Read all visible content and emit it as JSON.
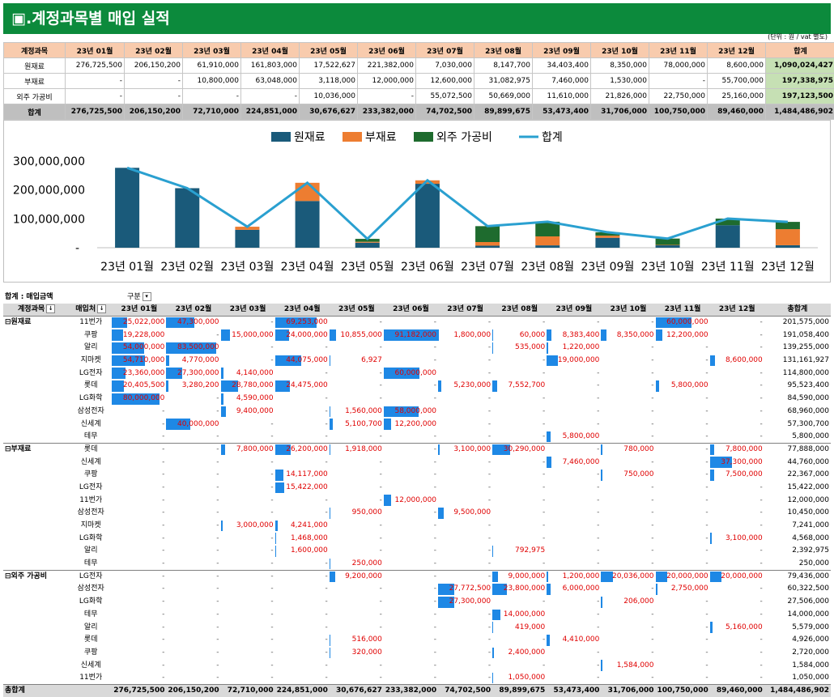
{
  "title": "▣.계정과목별 매입 실적",
  "unit_note": "(단위 : 원 / vat 별도)",
  "summary": {
    "header": [
      "계정과목",
      "23년 01월",
      "23년 02월",
      "23년 03월",
      "23년 04월",
      "23년 05월",
      "23년 06월",
      "23년 07월",
      "23년 08월",
      "23년 09월",
      "23년 10월",
      "23년 11월",
      "23년 12월",
      "합계"
    ],
    "rows": [
      {
        "label": "원재료",
        "values": [
          "276,725,500",
          "206,150,200",
          "61,910,000",
          "161,803,000",
          "17,522,627",
          "221,382,000",
          "7,030,000",
          "8,147,700",
          "34,403,400",
          "8,350,000",
          "78,000,000",
          "8,600,000",
          "1,090,024,427"
        ]
      },
      {
        "label": "부재료",
        "values": [
          "-",
          "-",
          "10,800,000",
          "63,048,000",
          "3,118,000",
          "12,000,000",
          "12,600,000",
          "31,082,975",
          "7,460,000",
          "1,530,000",
          "-",
          "55,700,000",
          "197,338,975"
        ]
      },
      {
        "label": "외주 가공비",
        "values": [
          "-",
          "-",
          "-",
          "-",
          "10,036,000",
          "-",
          "55,072,500",
          "50,669,000",
          "11,610,000",
          "21,826,000",
          "22,750,000",
          "25,160,000",
          "197,123,500"
        ]
      },
      {
        "label": "합계",
        "values": [
          "276,725,500",
          "206,150,200",
          "72,710,000",
          "224,851,000",
          "30,676,627",
          "233,382,000",
          "74,702,500",
          "89,899,675",
          "53,473,400",
          "31,706,000",
          "100,750,000",
          "89,460,000",
          "1,484,486,902"
        ]
      }
    ]
  },
  "chart_data": {
    "type": "bar",
    "stacked": true,
    "categories": [
      "23년 01월",
      "23년 02월",
      "23년 03월",
      "23년 04월",
      "23년 05월",
      "23년 06월",
      "23년 07월",
      "23년 08월",
      "23년 09월",
      "23년 10월",
      "23년 11월",
      "23년 12월"
    ],
    "series": [
      {
        "name": "원재료",
        "type": "bar",
        "color": "#1a5a7a",
        "values": [
          276725500,
          206150200,
          61910000,
          161803000,
          17522627,
          221382000,
          7030000,
          8147700,
          34403400,
          8350000,
          78000000,
          8600000
        ]
      },
      {
        "name": "부재료",
        "type": "bar",
        "color": "#ed7d31",
        "values": [
          0,
          0,
          10800000,
          63048000,
          3118000,
          12000000,
          12600000,
          31082975,
          7460000,
          1530000,
          0,
          55700000
        ]
      },
      {
        "name": "외주 가공비",
        "type": "bar",
        "color": "#1e6b2e",
        "values": [
          0,
          0,
          0,
          0,
          10036000,
          0,
          55072500,
          50669000,
          11610000,
          21826000,
          22750000,
          25160000
        ]
      },
      {
        "name": "합계",
        "type": "line",
        "color": "#2aa0d0",
        "values": [
          276725500,
          206150200,
          72710000,
          224851000,
          30676627,
          233382000,
          74702500,
          89899675,
          53473400,
          31706000,
          100750000,
          89460000
        ]
      }
    ],
    "ylim": [
      0,
      300000000
    ],
    "yticks": [
      "300,000,000",
      "200,000,000",
      "100,000,000",
      "-"
    ],
    "legend": "top-center",
    "grid": false
  },
  "pivot": {
    "filter_label": "합계 : 매입금액",
    "col_field": "구분",
    "row_field1": "계정과목",
    "row_field2": "매입처",
    "months": [
      "23년 01월",
      "23년 02월",
      "23년 03월",
      "23년 04월",
      "23년 05월",
      "23년 06월",
      "23년 07월",
      "23년 08월",
      "23년 09월",
      "23년 10월",
      "23년 11월",
      "23년 12월"
    ],
    "total_label": "총합계",
    "groups": [
      {
        "name": "원재료",
        "rows": [
          {
            "vendor": "11번가",
            "values": [
              "25,022,000",
              "47,300,000",
              "-",
              "69,253,000",
              "-",
              "-",
              "-",
              "-",
              "-",
              "-",
              "60,000,000",
              "-"
            ],
            "total": "201,575,000"
          },
          {
            "vendor": "쿠팡",
            "values": [
              "19,228,000",
              "-",
              "15,000,000",
              "24,000,000",
              "10,855,000",
              "91,182,000",
              "1,800,000",
              "60,000",
              "8,383,400",
              "8,350,000",
              "12,200,000",
              "-"
            ],
            "total": "191,058,400"
          },
          {
            "vendor": "알리",
            "values": [
              "54,000,000",
              "83,500,000",
              "-",
              "-",
              "-",
              "-",
              "-",
              "535,000",
              "1,220,000",
              "-",
              "-",
              "-"
            ],
            "total": "139,255,000"
          },
          {
            "vendor": "지마켓",
            "values": [
              "54,710,000",
              "4,770,000",
              "-",
              "44,075,000",
              "6,927",
              "-",
              "-",
              "-",
              "19,000,000",
              "-",
              "-",
              "8,600,000"
            ],
            "total": "131,161,927"
          },
          {
            "vendor": "LG전자",
            "values": [
              "23,360,000",
              "27,300,000",
              "4,140,000",
              "-",
              "-",
              "60,000,000",
              "-",
              "-",
              "-",
              "-",
              "-",
              "-"
            ],
            "total": "114,800,000"
          },
          {
            "vendor": "롯데",
            "values": [
              "20,405,500",
              "3,280,200",
              "28,780,000",
              "24,475,000",
              "-",
              "-",
              "5,230,000",
              "7,552,700",
              "-",
              "-",
              "5,800,000",
              "-"
            ],
            "total": "95,523,400"
          },
          {
            "vendor": "LG화학",
            "values": [
              "80,000,000",
              "-",
              "4,590,000",
              "-",
              "-",
              "-",
              "-",
              "-",
              "-",
              "-",
              "-",
              "-"
            ],
            "total": "84,590,000"
          },
          {
            "vendor": "삼성전자",
            "values": [
              "-",
              "-",
              "9,400,000",
              "-",
              "1,560,000",
              "58,000,000",
              "-",
              "-",
              "-",
              "-",
              "-",
              "-"
            ],
            "total": "68,960,000"
          },
          {
            "vendor": "신세계",
            "values": [
              "-",
              "40,000,000",
              "-",
              "-",
              "5,100,700",
              "12,200,000",
              "-",
              "-",
              "-",
              "-",
              "-",
              "-"
            ],
            "total": "57,300,700"
          },
          {
            "vendor": "테무",
            "values": [
              "-",
              "-",
              "-",
              "-",
              "-",
              "-",
              "-",
              "-",
              "5,800,000",
              "-",
              "-",
              "-"
            ],
            "total": "5,800,000"
          }
        ]
      },
      {
        "name": "부재료",
        "rows": [
          {
            "vendor": "롯데",
            "values": [
              "-",
              "-",
              "7,800,000",
              "26,200,000",
              "1,918,000",
              "-",
              "3,100,000",
              "30,290,000",
              "-",
              "780,000",
              "-",
              "7,800,000"
            ],
            "total": "77,888,000"
          },
          {
            "vendor": "신세계",
            "values": [
              "-",
              "-",
              "-",
              "-",
              "-",
              "-",
              "-",
              "-",
              "7,460,000",
              "-",
              "-",
              "37,300,000"
            ],
            "total": "44,760,000"
          },
          {
            "vendor": "쿠팡",
            "values": [
              "-",
              "-",
              "-",
              "14,117,000",
              "-",
              "-",
              "-",
              "-",
              "-",
              "750,000",
              "-",
              "7,500,000"
            ],
            "total": "22,367,000"
          },
          {
            "vendor": "LG전자",
            "values": [
              "-",
              "-",
              "-",
              "15,422,000",
              "-",
              "-",
              "-",
              "-",
              "-",
              "-",
              "-",
              "-"
            ],
            "total": "15,422,000"
          },
          {
            "vendor": "11번가",
            "values": [
              "-",
              "-",
              "-",
              "-",
              "-",
              "12,000,000",
              "-",
              "-",
              "-",
              "-",
              "-",
              "-"
            ],
            "total": "12,000,000"
          },
          {
            "vendor": "삼성전자",
            "values": [
              "-",
              "-",
              "-",
              "-",
              "950,000",
              "-",
              "9,500,000",
              "-",
              "-",
              "-",
              "-",
              "-"
            ],
            "total": "10,450,000"
          },
          {
            "vendor": "지마켓",
            "values": [
              "-",
              "-",
              "3,000,000",
              "4,241,000",
              "-",
              "-",
              "-",
              "-",
              "-",
              "-",
              "-",
              "-"
            ],
            "total": "7,241,000"
          },
          {
            "vendor": "LG화학",
            "values": [
              "-",
              "-",
              "-",
              "1,468,000",
              "-",
              "-",
              "-",
              "-",
              "-",
              "-",
              "-",
              "3,100,000"
            ],
            "total": "4,568,000"
          },
          {
            "vendor": "알리",
            "values": [
              "-",
              "-",
              "-",
              "1,600,000",
              "-",
              "-",
              "-",
              "792,975",
              "-",
              "-",
              "-",
              "-"
            ],
            "total": "2,392,975"
          },
          {
            "vendor": "테무",
            "values": [
              "-",
              "-",
              "-",
              "-",
              "250,000",
              "-",
              "-",
              "-",
              "-",
              "-",
              "-",
              "-"
            ],
            "total": "250,000"
          }
        ]
      },
      {
        "name": "외주 가공비",
        "rows": [
          {
            "vendor": "LG전자",
            "values": [
              "-",
              "-",
              "-",
              "-",
              "9,200,000",
              "-",
              "-",
              "9,000,000",
              "1,200,000",
              "20,036,000",
              "20,000,000",
              "20,000,000"
            ],
            "total": "79,436,000"
          },
          {
            "vendor": "삼성전자",
            "values": [
              "-",
              "-",
              "-",
              "-",
              "-",
              "-",
              "27,772,500",
              "23,800,000",
              "6,000,000",
              "-",
              "2,750,000",
              "-"
            ],
            "total": "60,322,500"
          },
          {
            "vendor": "LG화학",
            "values": [
              "-",
              "-",
              "-",
              "-",
              "-",
              "-",
              "27,300,000",
              "-",
              "-",
              "206,000",
              "-",
              "-"
            ],
            "total": "27,506,000"
          },
          {
            "vendor": "테무",
            "values": [
              "-",
              "-",
              "-",
              "-",
              "-",
              "-",
              "-",
              "14,000,000",
              "-",
              "-",
              "-",
              "-"
            ],
            "total": "14,000,000"
          },
          {
            "vendor": "알리",
            "values": [
              "-",
              "-",
              "-",
              "-",
              "-",
              "-",
              "-",
              "419,000",
              "-",
              "-",
              "-",
              "5,160,000"
            ],
            "total": "5,579,000"
          },
          {
            "vendor": "롯데",
            "values": [
              "-",
              "-",
              "-",
              "-",
              "516,000",
              "-",
              "-",
              "-",
              "4,410,000",
              "-",
              "-",
              "-"
            ],
            "total": "4,926,000"
          },
          {
            "vendor": "쿠팡",
            "values": [
              "-",
              "-",
              "-",
              "-",
              "320,000",
              "-",
              "-",
              "2,400,000",
              "-",
              "-",
              "-",
              "-"
            ],
            "total": "2,720,000"
          },
          {
            "vendor": "신세계",
            "values": [
              "-",
              "-",
              "-",
              "-",
              "-",
              "-",
              "-",
              "-",
              "-",
              "1,584,000",
              "-",
              "-"
            ],
            "total": "1,584,000"
          },
          {
            "vendor": "11번가",
            "values": [
              "-",
              "-",
              "-",
              "-",
              "-",
              "-",
              "-",
              "1,050,000",
              "-",
              "-",
              "-",
              "-"
            ],
            "total": "1,050,000"
          }
        ]
      }
    ],
    "grand_total": {
      "values": [
        "276,725,500",
        "206,150,200",
        "72,710,000",
        "224,851,000",
        "30,676,627",
        "233,382,000",
        "74,702,500",
        "89,899,675",
        "53,473,400",
        "31,706,000",
        "100,750,000",
        "89,460,000"
      ],
      "total": "1,484,486,902"
    }
  }
}
